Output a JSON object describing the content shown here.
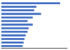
{
  "chart_data": {
    "type": "bar",
    "orientation": "horizontal",
    "categories": [
      null,
      null,
      null,
      null,
      null,
      null,
      null,
      null,
      null,
      null,
      null,
      null,
      null
    ],
    "values": [
      44.6,
      26.6,
      24.9,
      30.1,
      23.8,
      19.9,
      23.8,
      20.7,
      19.9,
      18.4,
      17.6,
      16.9,
      16.1
    ],
    "color": "#4472c4",
    "xlim": [
      0,
      50
    ],
    "grid": false,
    "tick_labels": false
  }
}
